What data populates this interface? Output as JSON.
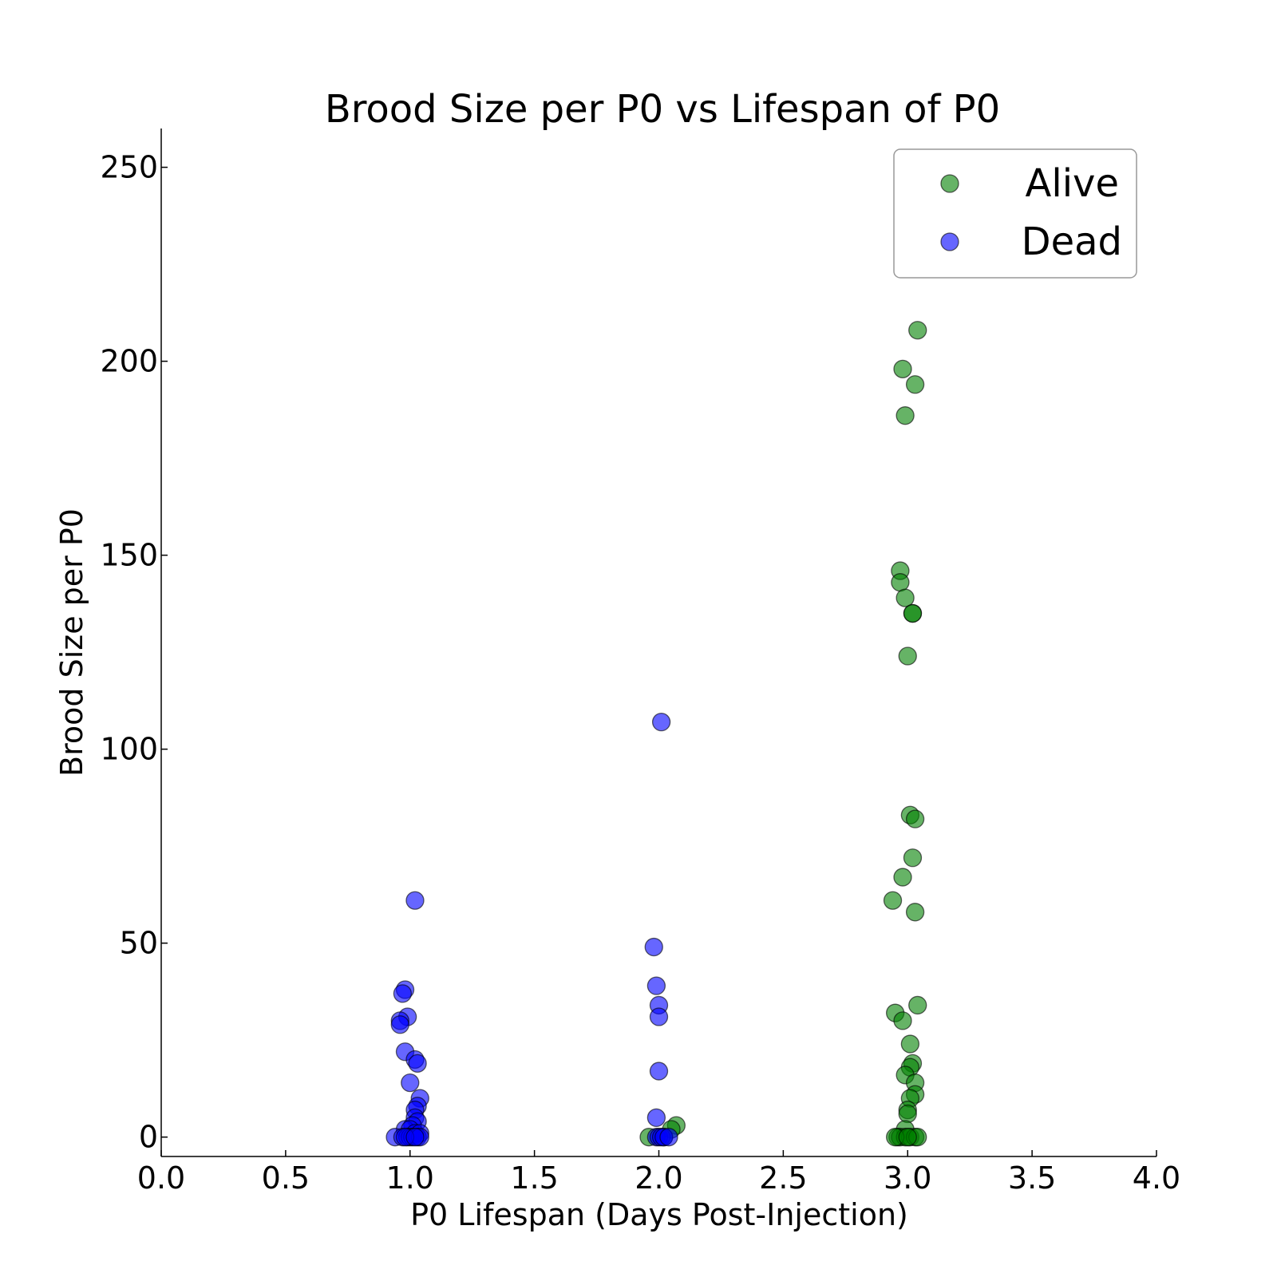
{
  "chart_data": {
    "type": "scatter",
    "title": "Brood Size per P0 vs Lifespan of P0",
    "xlabel": "P0 Lifespan (Days Post-Injection)",
    "ylabel": "Brood Size per P0",
    "xlim": [
      0.0,
      4.0
    ],
    "ylim": [
      -5,
      260
    ],
    "xticks": [
      "0.0",
      "0.5",
      "1.0",
      "1.5",
      "2.0",
      "2.5",
      "3.0",
      "3.5",
      "4.0"
    ],
    "xtick_values": [
      0.0,
      0.5,
      1.0,
      1.5,
      2.0,
      2.5,
      3.0,
      3.5,
      4.0
    ],
    "yticks": [
      "0",
      "50",
      "100",
      "150",
      "200",
      "250"
    ],
    "ytick_values": [
      0,
      50,
      100,
      150,
      200,
      250
    ],
    "grid": false,
    "legend_position": "top-right",
    "series": [
      {
        "name": "Alive",
        "color": "#008000",
        "points": [
          [
            3.04,
            208
          ],
          [
            2.98,
            198
          ],
          [
            3.03,
            194
          ],
          [
            2.99,
            186
          ],
          [
            2.97,
            146
          ],
          [
            2.97,
            143
          ],
          [
            2.99,
            139
          ],
          [
            3.02,
            135
          ],
          [
            3.02,
            135
          ],
          [
            3.0,
            124
          ],
          [
            3.01,
            83
          ],
          [
            3.03,
            82
          ],
          [
            3.02,
            72
          ],
          [
            2.98,
            67
          ],
          [
            2.94,
            61
          ],
          [
            3.03,
            58
          ],
          [
            3.04,
            34
          ],
          [
            2.95,
            32
          ],
          [
            2.98,
            30
          ],
          [
            3.01,
            24
          ],
          [
            3.02,
            19
          ],
          [
            3.01,
            18
          ],
          [
            2.99,
            16
          ],
          [
            3.03,
            14
          ],
          [
            3.03,
            11
          ],
          [
            3.01,
            10
          ],
          [
            3.0,
            7
          ],
          [
            3.0,
            6
          ],
          [
            2.99,
            2
          ],
          [
            2.96,
            0
          ],
          [
            2.97,
            0
          ],
          [
            2.99,
            0
          ],
          [
            3.01,
            0
          ],
          [
            3.03,
            0
          ],
          [
            3.04,
            0
          ],
          [
            2.95,
            0
          ],
          [
            3.0,
            0
          ],
          [
            2.07,
            3
          ],
          [
            2.05,
            2
          ],
          [
            1.96,
            0
          ],
          [
            2.02,
            0
          ]
        ]
      },
      {
        "name": "Dead",
        "color": "#0000ff",
        "points": [
          [
            1.02,
            61
          ],
          [
            0.98,
            38
          ],
          [
            0.97,
            37
          ],
          [
            0.99,
            31
          ],
          [
            0.96,
            30
          ],
          [
            0.96,
            29
          ],
          [
            0.98,
            22
          ],
          [
            1.02,
            20
          ],
          [
            1.03,
            19
          ],
          [
            1.0,
            14
          ],
          [
            1.04,
            10
          ],
          [
            1.03,
            8
          ],
          [
            1.02,
            7
          ],
          [
            1.02,
            5
          ],
          [
            1.03,
            4
          ],
          [
            1.01,
            3
          ],
          [
            0.98,
            2
          ],
          [
            1.0,
            2
          ],
          [
            1.02,
            1
          ],
          [
            1.04,
            1
          ],
          [
            0.94,
            0
          ],
          [
            0.97,
            0
          ],
          [
            0.99,
            0
          ],
          [
            1.0,
            0
          ],
          [
            1.01,
            0
          ],
          [
            1.03,
            0
          ],
          [
            1.04,
            0
          ],
          [
            0.98,
            0
          ],
          [
            1.02,
            0
          ],
          [
            2.01,
            107
          ],
          [
            1.98,
            49
          ],
          [
            1.99,
            39
          ],
          [
            2.0,
            34
          ],
          [
            2.0,
            31
          ],
          [
            2.0,
            17
          ],
          [
            1.99,
            5
          ],
          [
            1.99,
            0
          ],
          [
            2.0,
            0
          ],
          [
            2.01,
            0
          ],
          [
            2.02,
            0
          ],
          [
            2.04,
            0
          ]
        ]
      }
    ]
  }
}
